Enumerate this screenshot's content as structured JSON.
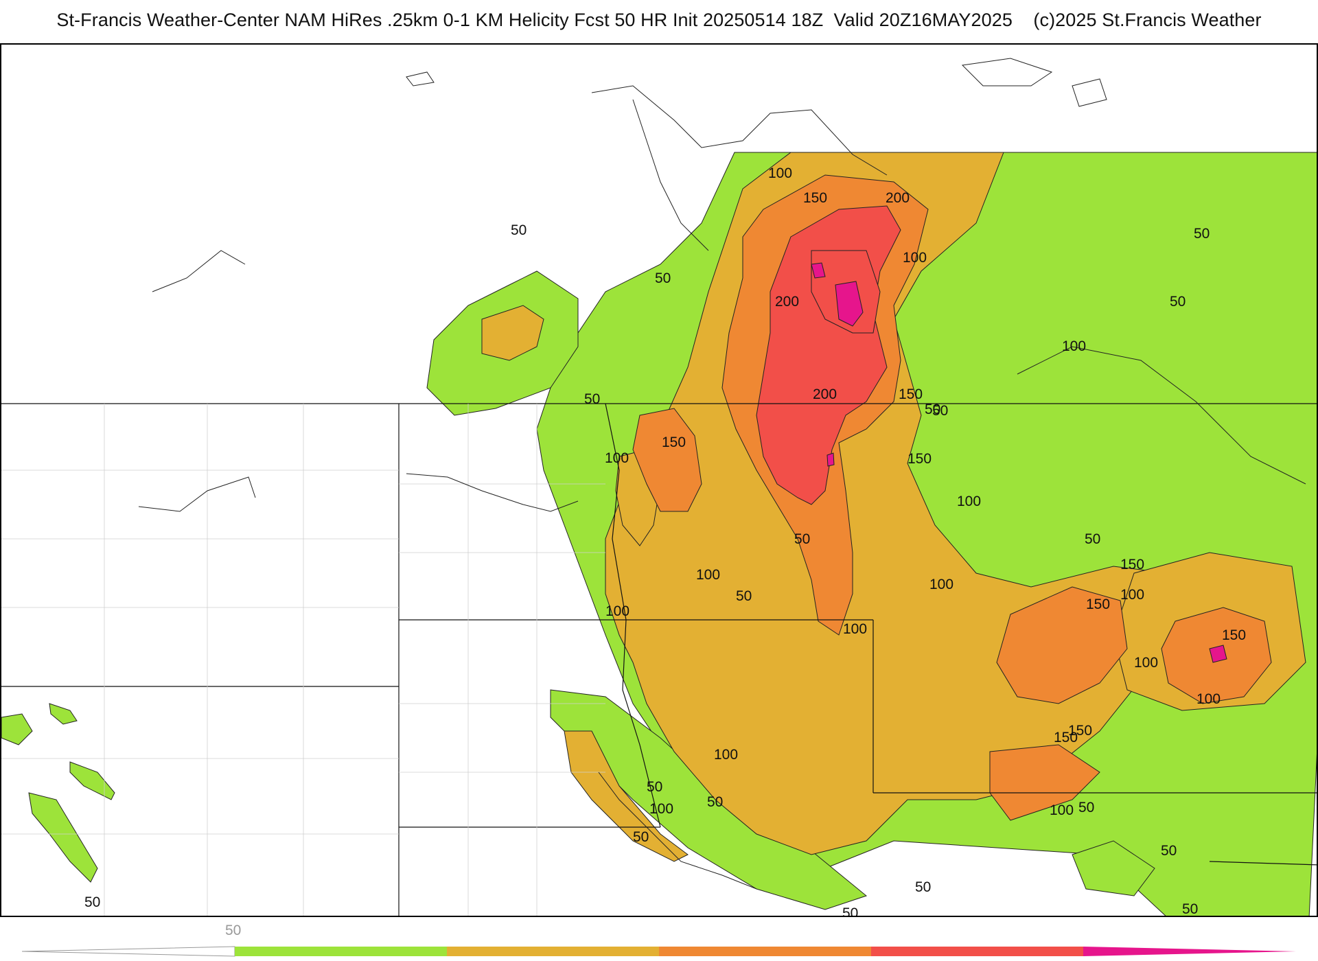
{
  "header": {
    "title": "St-Francis Weather-Center NAM HiRes .25km 0-1 KM Helicity Fcst 50 HR Init 20250514 18Z  Valid 20Z16MAY2025    (c)2025 St.Francis Weather"
  },
  "legend": {
    "tick_label": "50",
    "colors": [
      "#9de33a",
      "#e3b033",
      "#ef8833",
      "#f24f49",
      "#e6158c"
    ]
  },
  "contour_labels": [
    "100",
    "150",
    "200",
    "50",
    "50",
    "100",
    "200",
    "50",
    "50",
    "100",
    "150",
    "200",
    "50",
    "50",
    "150",
    "100",
    "150",
    "100",
    "50",
    "50",
    "150",
    "100",
    "100",
    "50",
    "100",
    "100",
    "100",
    "150",
    "150",
    "150",
    "100",
    "100",
    "50",
    "100",
    "50",
    "50",
    "100",
    "50",
    "50",
    "50",
    "50",
    "50",
    "50",
    "50",
    "150",
    "100"
  ]
}
